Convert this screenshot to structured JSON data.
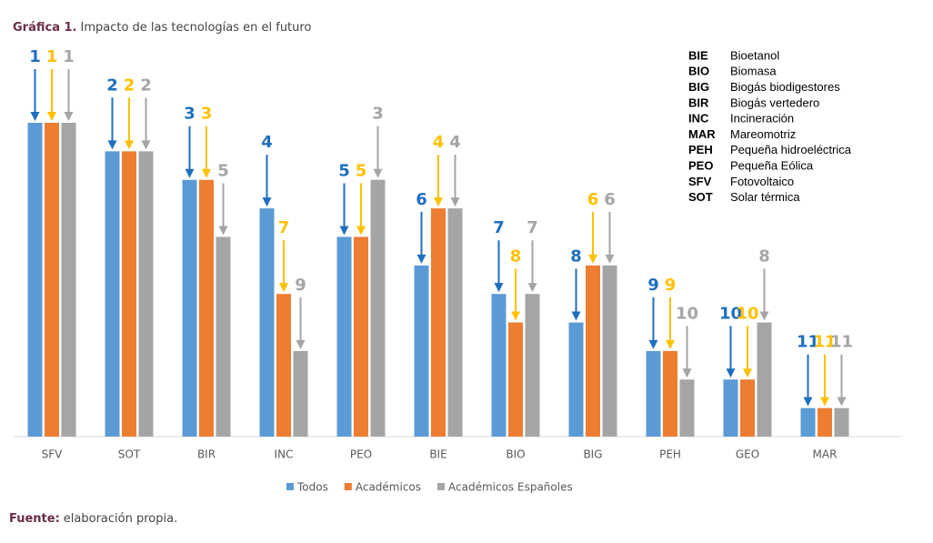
{
  "chart_data": {
    "type": "bar",
    "title_label": "Gráfica 1.",
    "title": "Impacto de las tecnologías en el futuro",
    "source_label": "Fuente:",
    "source": "elaboración propia.",
    "categories": [
      "SFV",
      "SOT",
      "BIR",
      "INC",
      "PEO",
      "BIE",
      "BIO",
      "BIG",
      "PEH",
      "GEO",
      "MAR"
    ],
    "series": [
      {
        "name": "Todos",
        "color": "#5b9bd5",
        "label_color": "#1f6fbf",
        "values": [
          1,
          2,
          3,
          4,
          5,
          6,
          7,
          8,
          9,
          10,
          11
        ]
      },
      {
        "name": "Académicos",
        "color": "#ed7d31",
        "label_color": "#ffc000",
        "values": [
          1,
          2,
          3,
          7,
          5,
          4,
          8,
          6,
          9,
          10,
          11
        ]
      },
      {
        "name": "Académicos Españoles",
        "color": "#a5a5a5",
        "label_color": "#a5a5a5",
        "values": [
          1,
          2,
          5,
          9,
          3,
          4,
          7,
          6,
          10,
          8,
          11
        ]
      }
    ],
    "abbreviations": [
      {
        "code": "BIE",
        "name": "Bioetanol"
      },
      {
        "code": "BIO",
        "name": "Biomasa"
      },
      {
        "code": "BIG",
        "name": "Biogás biodigestores"
      },
      {
        "code": "BIR",
        "name": "Biogás vertedero"
      },
      {
        "code": "INC",
        "name": "Incineración"
      },
      {
        "code": "MAR",
        "name": "Mareomotriz"
      },
      {
        "code": "PEH",
        "name": "Pequeña hidroeléctrica"
      },
      {
        "code": "PEO",
        "name": "Pequeña Eólica"
      },
      {
        "code": "SFV",
        "name": "Fotovoltaico"
      },
      {
        "code": "SOT",
        "name": "Solar térmica"
      }
    ]
  }
}
